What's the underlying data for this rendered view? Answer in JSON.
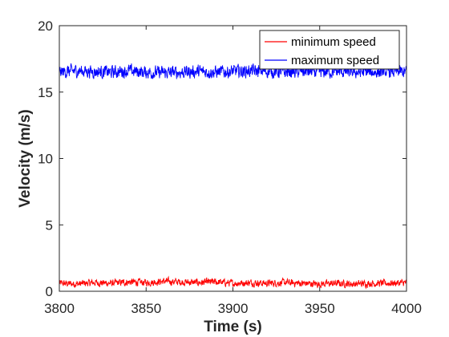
{
  "chart_data": {
    "type": "line",
    "title": "",
    "xlabel": "Time (s)",
    "ylabel": "Velocity (m/s)",
    "xlim": [
      3800,
      4000
    ],
    "ylim": [
      0,
      20
    ],
    "xticks": [
      3800,
      3850,
      3900,
      3950,
      4000
    ],
    "yticks": [
      0,
      5,
      10,
      15,
      20
    ],
    "grid": false,
    "legend": {
      "placement": "top-right"
    },
    "series": [
      {
        "name": "minimum speed",
        "color": "#ff0000",
        "x": [
          3800,
          3810,
          3820,
          3830,
          3840,
          3850,
          3860,
          3870,
          3880,
          3890,
          3900,
          3910,
          3920,
          3930,
          3940,
          3950,
          3960,
          3970,
          3980,
          3990,
          4000
        ],
        "y": [
          0.6,
          0.55,
          0.65,
          0.6,
          0.7,
          0.65,
          0.75,
          0.7,
          0.65,
          0.7,
          0.6,
          0.65,
          0.6,
          0.65,
          0.6,
          0.55,
          0.6,
          0.55,
          0.6,
          0.6,
          0.65
        ],
        "noise_amplitude": 0.22
      },
      {
        "name": "maximum speed",
        "color": "#0000ff",
        "x": [
          3800,
          3810,
          3820,
          3830,
          3840,
          3850,
          3860,
          3870,
          3880,
          3890,
          3900,
          3910,
          3920,
          3930,
          3940,
          3950,
          3960,
          3970,
          3980,
          3990,
          4000
        ],
        "y": [
          16.5,
          16.6,
          16.55,
          16.5,
          16.6,
          16.5,
          16.45,
          16.5,
          16.55,
          16.5,
          16.55,
          16.6,
          16.55,
          16.5,
          16.55,
          16.5,
          16.55,
          16.5,
          16.5,
          16.55,
          16.5
        ],
        "noise_amplitude": 0.4
      }
    ]
  }
}
